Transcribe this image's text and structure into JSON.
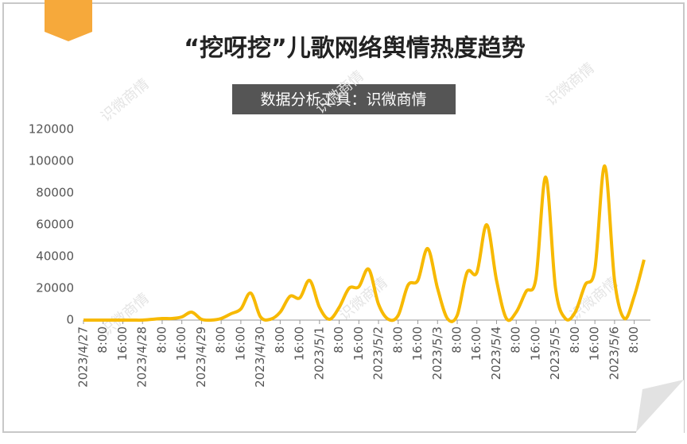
{
  "chart_data": {
    "type": "line",
    "title": "“挖呀挖”儿歌网络舆情热度趋势",
    "subtitle": "数据分析工具：识微商情",
    "watermark": "识微商情",
    "categories": [
      "2023/4/27",
      null,
      "8:00",
      null,
      "16:00",
      null,
      "2023/4/28",
      null,
      "8:00",
      null,
      "16:00",
      null,
      "2023/4/29",
      null,
      "8:00",
      null,
      "16:00",
      null,
      "2023/4/30",
      null,
      "8:00",
      null,
      "16:00",
      null,
      "2023/5/1",
      null,
      "8:00",
      null,
      "16:00",
      null,
      "2023/5/2",
      null,
      "8:00",
      null,
      "16:00",
      null,
      "2023/5/3",
      null,
      "8:00",
      null,
      "16:00",
      null,
      "2023/5/4",
      null,
      "8:00",
      null,
      "16:00",
      null,
      "2023/5/5",
      null,
      "8:00",
      null,
      "16:00",
      null,
      "2023/5/6",
      null,
      "8:00",
      null
    ],
    "values": [
      0,
      0,
      0,
      0,
      0,
      0,
      0,
      500,
      1000,
      1000,
      2000,
      5000,
      500,
      0,
      1000,
      4000,
      7000,
      17000,
      2000,
      500,
      5000,
      15000,
      14000,
      25000,
      8000,
      500,
      8000,
      20000,
      21000,
      32000,
      10000,
      500,
      3000,
      22000,
      25000,
      45000,
      20000,
      1000,
      3000,
      30000,
      30000,
      60000,
      25000,
      1000,
      5000,
      18000,
      26000,
      90000,
      20000,
      1000,
      5000,
      22000,
      32000,
      97000,
      25000,
      1000,
      15000,
      38000
    ],
    "color": "#f7b900",
    "ylim": [
      0,
      120000
    ],
    "yticks": [
      0,
      20000,
      40000,
      60000,
      80000,
      100000,
      120000
    ],
    "grid": false
  }
}
